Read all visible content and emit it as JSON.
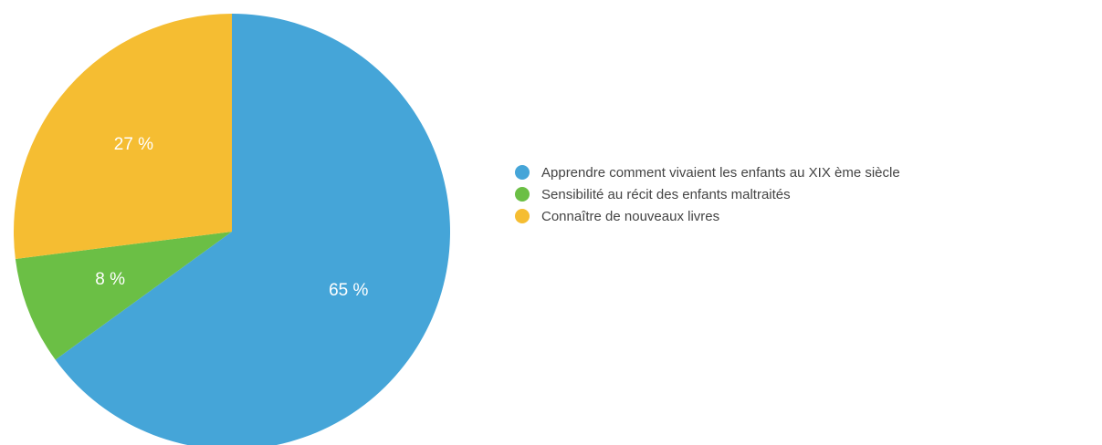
{
  "chart_data": {
    "type": "pie",
    "title": "",
    "slices": [
      {
        "label": "Apprendre comment vivaient les enfants au XIX ème siècle",
        "value": 65,
        "display": "65 %",
        "color": "#45a5d8"
      },
      {
        "label": "Sensibilité au récit des enfants maltraités",
        "value": 8,
        "display": "8 %",
        "color": "#6bbf45"
      },
      {
        "label": "Connaître de nouveaux livres",
        "value": 27,
        "display": "27 %",
        "color": "#f5bd32"
      }
    ],
    "start": "12 o'clock",
    "direction": "clockwise",
    "legend_position": "right"
  }
}
